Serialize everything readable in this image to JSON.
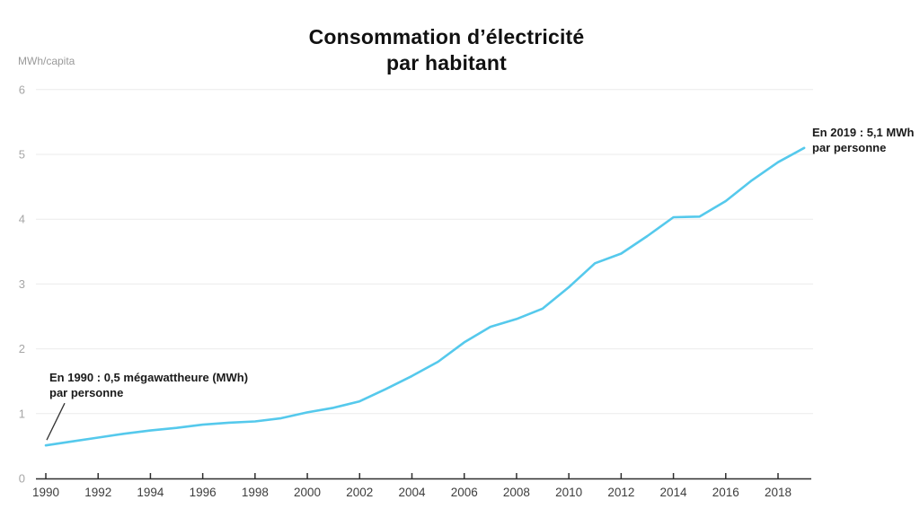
{
  "header": {
    "title_line1": "Consommation d’électricité",
    "title_line2": "par habitant"
  },
  "chart_data": {
    "type": "line",
    "title": "Consommation d’électricité par habitant",
    "ylabel": "MWh/capita",
    "xlabel": "",
    "x": [
      1990,
      1991,
      1992,
      1993,
      1994,
      1995,
      1996,
      1997,
      1998,
      1999,
      2000,
      2001,
      2002,
      2003,
      2004,
      2005,
      2006,
      2007,
      2008,
      2009,
      2010,
      2011,
      2012,
      2013,
      2014,
      2015,
      2016,
      2017,
      2018,
      2019
    ],
    "values": [
      0.51,
      0.57,
      0.63,
      0.69,
      0.74,
      0.78,
      0.83,
      0.86,
      0.88,
      0.93,
      1.02,
      1.09,
      1.19,
      1.38,
      1.58,
      1.8,
      2.1,
      2.34,
      2.46,
      2.62,
      2.95,
      3.32,
      3.47,
      3.74,
      4.03,
      4.04,
      4.28,
      4.6,
      4.88,
      5.1
    ],
    "x_ticks": [
      1990,
      1992,
      1994,
      1996,
      1998,
      2000,
      2002,
      2004,
      2006,
      2008,
      2010,
      2012,
      2014,
      2016,
      2018
    ],
    "y_ticks": [
      0,
      1,
      2,
      3,
      4,
      5,
      6
    ],
    "ylim": [
      0,
      6
    ],
    "xlim": [
      1990,
      2019
    ],
    "grid": true,
    "legend": "none",
    "colors": {
      "line": "#55c9ec",
      "grid": "#ebebeb",
      "axis": "#2f2f2f",
      "y_tick_label": "#a6a6a6",
      "x_tick_label": "#3d3d3d",
      "annotation_text": "#1a1a1a",
      "leader_line": "#333333"
    },
    "annotations": [
      {
        "id": "start",
        "line1": "En 1990 : 0,5 mégawattheure (MWh)",
        "line2": "par personne",
        "year": 1990,
        "value": 0.51,
        "leader": true
      },
      {
        "id": "end",
        "line1": "En 2019 : 5,1 MWh",
        "line2": "par personne",
        "year": 2019,
        "value": 5.1,
        "leader": false
      }
    ]
  }
}
